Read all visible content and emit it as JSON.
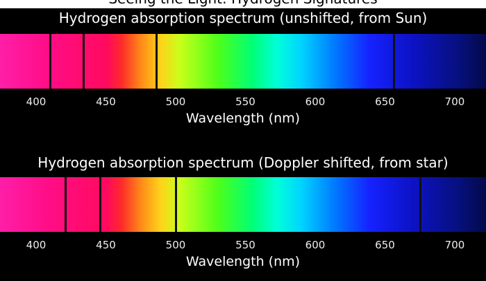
{
  "header_partial": "Seeing the Light: Hydrogen Signatures",
  "spectra": [
    {
      "title": "Hydrogen absorption spectrum (unshifted, from Sun)",
      "axis_label": "Wavelength (nm)",
      "ticks": [
        400,
        450,
        500,
        550,
        600,
        650,
        700
      ],
      "absorption_lines_nm": [
        410,
        434,
        486,
        656
      ]
    },
    {
      "title": "Hydrogen absorption spectrum (Doppler shifted, from star)",
      "axis_label": "Wavelength (nm)",
      "ticks": [
        400,
        450,
        500,
        550,
        600,
        650,
        700
      ],
      "absorption_lines_nm": [
        421,
        446,
        500,
        675
      ]
    }
  ]
}
